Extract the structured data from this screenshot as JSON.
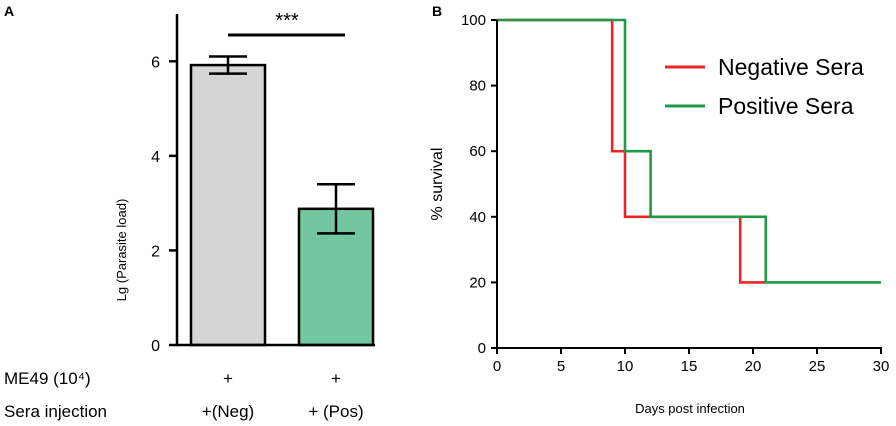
{
  "chart_data": [
    {
      "panel": "A",
      "type": "bar",
      "categories": [
        "+(Neg)",
        "+ (Pos)"
      ],
      "values": [
        5.92,
        2.88
      ],
      "errors": [
        0.18,
        0.52
      ],
      "colors": [
        "#d4d6d5",
        "#72c7a0"
      ],
      "ylabel": "Lg (Parasite load)",
      "ylim": [
        0,
        7
      ],
      "yticks": [
        0,
        2,
        4,
        6
      ],
      "significance": "***",
      "rows": [
        {
          "label": "ME49 (10⁴)",
          "values": [
            "+",
            "+"
          ]
        },
        {
          "label": "Sera injection",
          "values": [
            "+(Neg)",
            "+ (Pos)"
          ]
        }
      ]
    },
    {
      "panel": "B",
      "type": "line",
      "xlabel": "Days post infection",
      "ylabel": "% survival",
      "xlim": [
        0,
        30
      ],
      "ylim": [
        0,
        100
      ],
      "xticks": [
        0,
        5,
        10,
        15,
        20,
        25,
        30
      ],
      "yticks": [
        0,
        20,
        40,
        60,
        80,
        100
      ],
      "legend_position": "top-right",
      "series": [
        {
          "name": "Negative Sera",
          "color": "#e8262a",
          "x": [
            0,
            9,
            9,
            10,
            10,
            19,
            19,
            21
          ],
          "y": [
            100,
            100,
            60,
            60,
            40,
            40,
            20,
            20
          ]
        },
        {
          "name": "Positive Sera",
          "color": "#1e9b48",
          "x": [
            0,
            10,
            10,
            12,
            12,
            21,
            21,
            30
          ],
          "y": [
            100,
            100,
            60,
            60,
            40,
            40,
            20,
            20
          ]
        }
      ]
    }
  ]
}
